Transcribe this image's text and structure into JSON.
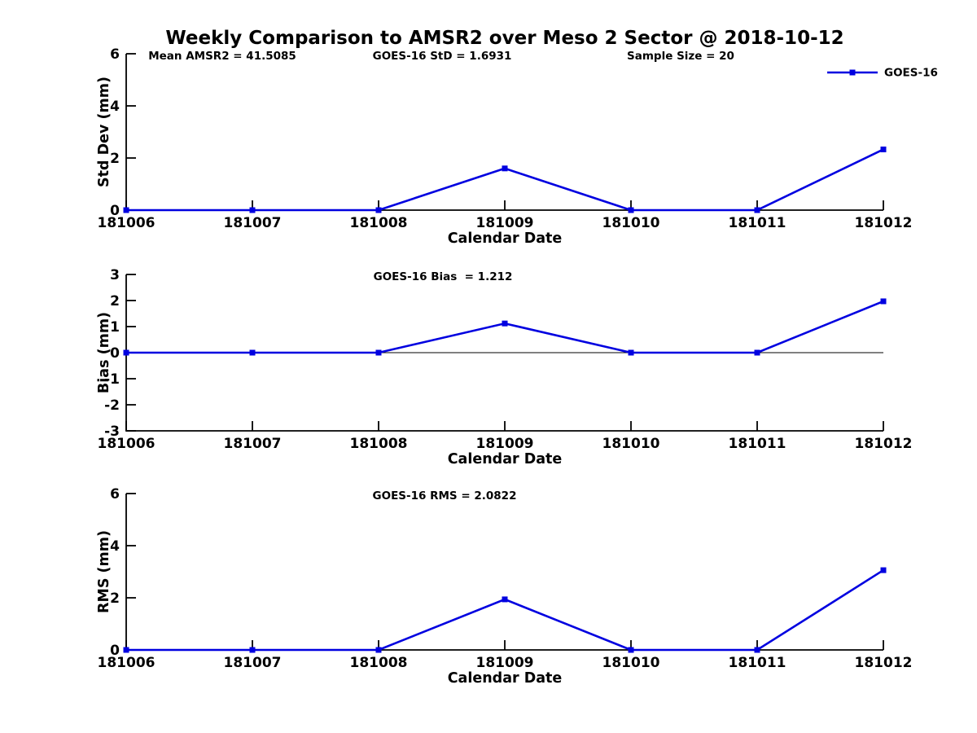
{
  "title": "Weekly Comparison to AMSR2 over Meso 2 Sector @ 2018-10-12",
  "legend": {
    "label": "GOES-16"
  },
  "colors": {
    "series": "#0000e0",
    "axis": "#000000",
    "zero_line": "#000000",
    "text": "#000000",
    "background": "#ffffff"
  },
  "chart_data": [
    {
      "type": "line",
      "id": "std-dev",
      "categories": [
        "181006",
        "181007",
        "181008",
        "181009",
        "181010",
        "181011",
        "181012"
      ],
      "series": [
        {
          "name": "GOES-16",
          "values": [
            0,
            0,
            0,
            1.6,
            0,
            0,
            2.33
          ]
        }
      ],
      "xlabel": "Calendar Date",
      "ylabel": "Std Dev (mm)",
      "ylim": [
        0,
        6
      ],
      "yticks": [
        0,
        2,
        4,
        6
      ],
      "grid": false,
      "legend_position": "top-right",
      "annotations": [
        "Mean AMSR2 = 41.5085",
        "GOES-16 StD = 1.6931",
        "Sample Size = 20"
      ]
    },
    {
      "type": "line",
      "id": "bias",
      "categories": [
        "181006",
        "181007",
        "181008",
        "181009",
        "181010",
        "181011",
        "181012"
      ],
      "series": [
        {
          "name": "GOES-16",
          "values": [
            0,
            0,
            0,
            1.12,
            0,
            0,
            1.97
          ]
        }
      ],
      "xlabel": "Calendar Date",
      "ylabel": "Bias (mm)",
      "ylim": [
        -3,
        3
      ],
      "yticks": [
        -3,
        -2,
        -1,
        0,
        1,
        2,
        3
      ],
      "grid": false,
      "zero_line": true,
      "annotations": [
        "GOES-16 Bias  = 1.212"
      ]
    },
    {
      "type": "line",
      "id": "rms",
      "categories": [
        "181006",
        "181007",
        "181008",
        "181009",
        "181010",
        "181011",
        "181012"
      ],
      "series": [
        {
          "name": "GOES-16",
          "values": [
            0,
            0,
            0,
            1.94,
            0,
            0,
            3.06
          ]
        }
      ],
      "xlabel": "Calendar Date",
      "ylabel": "RMS (mm)",
      "ylim": [
        0,
        6
      ],
      "yticks": [
        0,
        2,
        4,
        6
      ],
      "grid": false,
      "annotations": [
        "GOES-16 RMS = 2.0822"
      ]
    }
  ]
}
